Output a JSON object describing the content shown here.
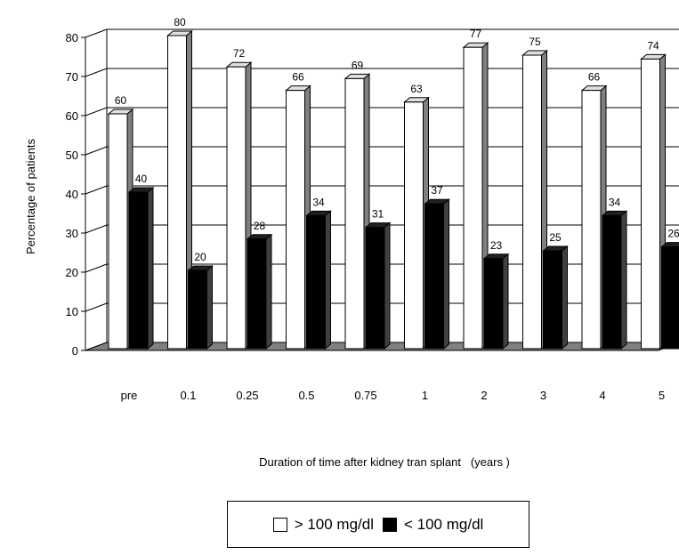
{
  "chart_data": {
    "type": "bar",
    "title": "",
    "xlabel": "Duration of time after kidney tran splant   (years )",
    "ylabel": "Percentage of patients",
    "ylim": [
      0,
      80
    ],
    "yticks": [
      0,
      10,
      20,
      30,
      40,
      50,
      60,
      70,
      80
    ],
    "grid": true,
    "legend": "bottom",
    "categories": [
      "pre",
      "0.1",
      "0.25",
      "0.5",
      "0.75",
      "1",
      "2",
      "3",
      "4",
      "5"
    ],
    "series": [
      {
        "name": "> 100 mg/dl",
        "color": "#ffffff",
        "values": [
          60,
          80,
          72,
          66,
          69,
          63,
          77,
          75,
          66,
          74
        ]
      },
      {
        "name": "< 100 mg/dl",
        "color": "#000000",
        "values": [
          40,
          20,
          28,
          34,
          31,
          37,
          23,
          25,
          34,
          26
        ]
      }
    ]
  }
}
